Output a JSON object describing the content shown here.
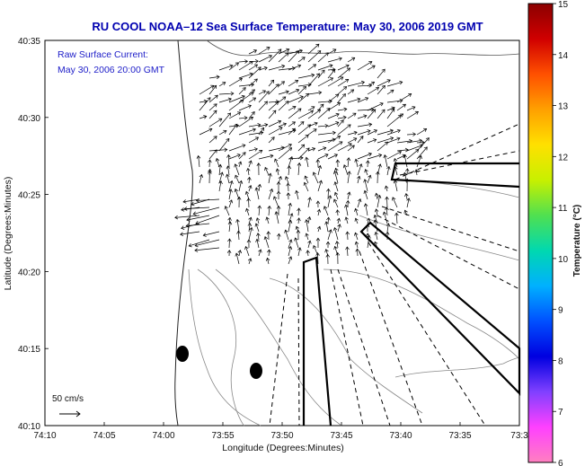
{
  "chart_data": {
    "type": "map-vector",
    "title": "RU COOL  NOAA–12  Sea Surface Temperature:  May 30, 2006 2019 GMT",
    "annotations": [
      "Raw Surface Current:",
      "May 30, 2006 20:00 GMT"
    ],
    "scale_label": "50 cm/s",
    "xlabel": "Longitude (Degrees:Minutes)",
    "ylabel": "Latitude (Degrees:Minutes)",
    "x_ticks": [
      "74:10",
      "74:05",
      "74:00",
      "73:55",
      "73:50",
      "73:45",
      "73:40",
      "73:35",
      "73:3"
    ],
    "y_ticks": [
      "40:35",
      "40:30",
      "40:25",
      "40:20",
      "40:15",
      "40:10"
    ],
    "colorbar": {
      "label": "Temperature (°C)",
      "ticks": [
        "15",
        "14",
        "13",
        "12",
        "11",
        "10",
        "9",
        "8",
        "7",
        "6"
      ],
      "range": [
        6,
        15
      ],
      "colors": [
        "#8b0000",
        "#d00000",
        "#ff5000",
        "#ffa000",
        "#ffe000",
        "#c8f000",
        "#50e050",
        "#00d8b0",
        "#00b0ff",
        "#0050ff",
        "#0000e0",
        "#8040ff",
        "#ff40ff",
        "#ff80c0"
      ]
    },
    "vector_field": {
      "description_free": true,
      "units": "cm/s"
    }
  }
}
